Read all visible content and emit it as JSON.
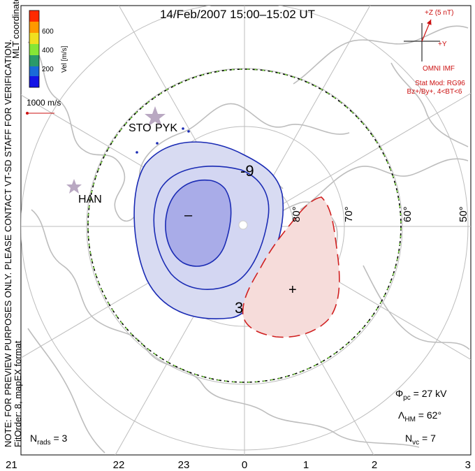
{
  "title": "14/Feb/2007  15:00–15:02  UT",
  "side_note": "NOTE: FOR PREVIEW PURPOSES ONLY. PLEASE CONTACT VT-SD STAFF FOR VERIFICATION.",
  "fit_info": "FitOrder: 8, mapEX format",
  "coords_label": "MLT coordinates",
  "colorbar": {
    "title": "Vel [m/s]",
    "ticks": [
      "600",
      "400",
      "200"
    ],
    "colors": [
      "#ff2a00",
      "#ff9800",
      "#f0e020",
      "#86e636",
      "#2a9a6a",
      "#1a6ad8",
      "#1414e6"
    ]
  },
  "vector_scale": "1000 m/s",
  "imf": {
    "z_label": "+Z (5 nT)",
    "y_label": "+Y",
    "source": "OMNI IMF",
    "model": "Stat Mod: RG96",
    "condition": "Bz+/By+, 4<BT<6",
    "color": "#cc1111"
  },
  "contour_labels": {
    "negative": "-9",
    "positive": "3"
  },
  "extrema": {
    "min_symbol": "–",
    "max_symbol": "+"
  },
  "latitude_labels": [
    "80°",
    "70°",
    "60°",
    "50°"
  ],
  "mlt_labels": [
    "21",
    "22",
    "23",
    "0",
    "1",
    "2",
    "3"
  ],
  "stations": [
    "STO",
    "PYK",
    "HAN"
  ],
  "stats": {
    "phi_pc_label": "Φ",
    "phi_pc_sub": "pc",
    "phi_pc_value": " = 27 kV",
    "lambda_label": "Λ",
    "lambda_sub": "HM",
    "lambda_value": " = 62°",
    "nvc_label": "N",
    "nvc_sub": "vc",
    "nvc_value": " = 7",
    "nrads_label": "N",
    "nrads_sub": "rads",
    "nrads_value": " = 3"
  }
}
